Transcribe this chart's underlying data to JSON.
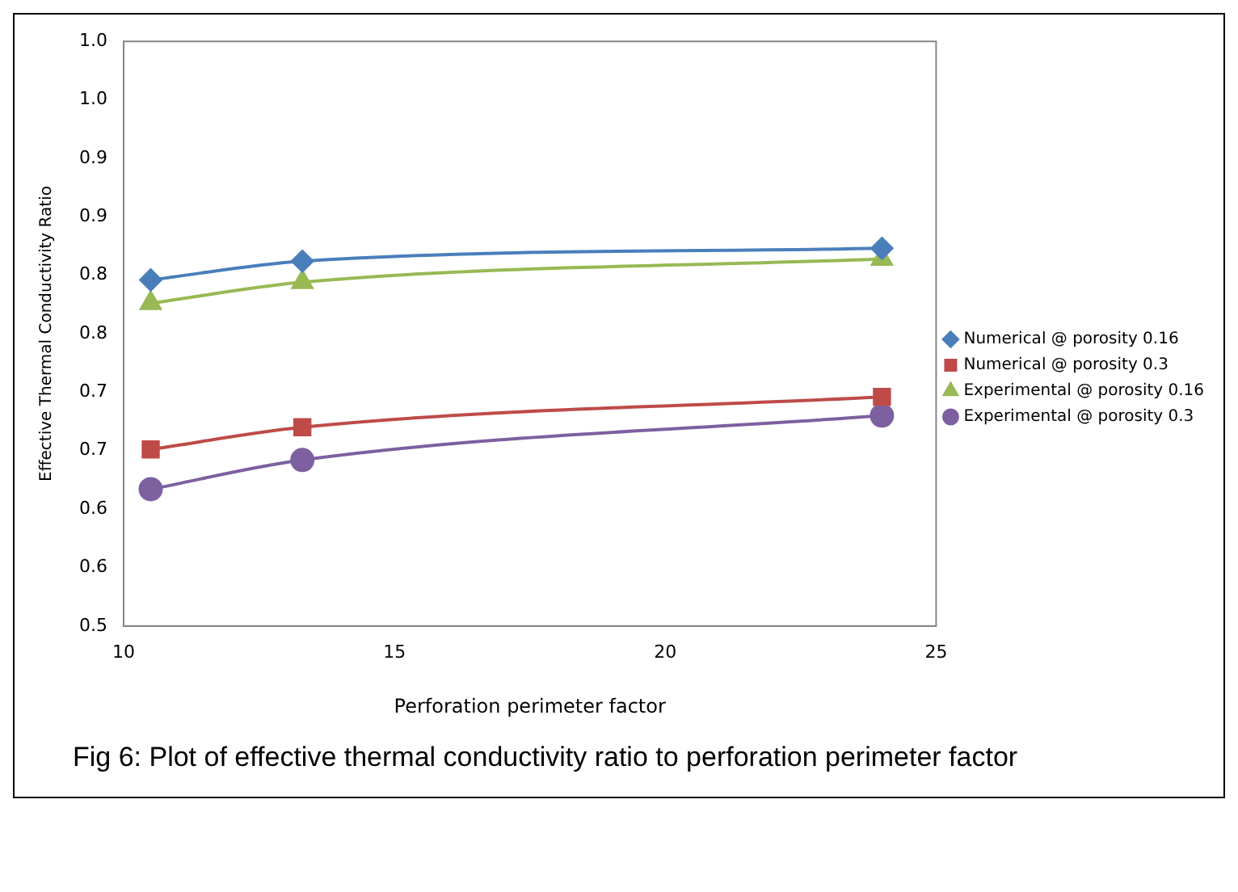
{
  "chart_data": {
    "type": "line",
    "xlabel": "Perforation perimeter factor",
    "ylabel": "Effective Thermal Conductivity Ratio",
    "x": [
      10.5,
      13.3,
      24
    ],
    "series": [
      {
        "name": "Numerical @ porosity 0.16",
        "color": "#4a7ebb",
        "values": [
          0.796,
          0.812,
          0.823
        ],
        "marker": "diamond"
      },
      {
        "name": "Numerical @ porosity 0.3",
        "color": "#be4b48",
        "values": [
          0.651,
          0.67,
          0.696
        ],
        "marker": "square"
      },
      {
        "name": "Experimental @ porosity 0.16",
        "color": "#98b954",
        "values": [
          0.776,
          0.794,
          0.814
        ],
        "marker": "triangle"
      },
      {
        "name": "Experimental @ porosity 0.3",
        "color": "#7d60a0",
        "values": [
          0.617,
          0.642,
          0.68
        ],
        "marker": "circle"
      }
    ],
    "xlim": [
      10,
      25
    ],
    "xticks": [
      10,
      15,
      20,
      25
    ],
    "ylim": [
      0.5,
      1.0
    ],
    "yticks": [
      {
        "value": 0.5,
        "label": "0.5"
      },
      {
        "value": 0.55,
        "label": "0.6"
      },
      {
        "value": 0.6,
        "label": "0.6"
      },
      {
        "value": 0.65,
        "label": "0.7"
      },
      {
        "value": 0.7,
        "label": "0.7"
      },
      {
        "value": 0.75,
        "label": "0.8"
      },
      {
        "value": 0.8,
        "label": "0.8"
      },
      {
        "value": 0.85,
        "label": "0.9"
      },
      {
        "value": 0.9,
        "label": "0.9"
      },
      {
        "value": 0.95,
        "label": "1.0"
      },
      {
        "value": 1.0,
        "label": "1.0"
      }
    ],
    "grid": false,
    "legend": "right",
    "line_style": "solid",
    "annotations": [
      "Fig 6: Plot of effective thermal conductivity ratio to perforation perimeter factor"
    ]
  }
}
